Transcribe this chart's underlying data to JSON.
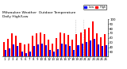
{
  "title": "Milwaukee Weather  Outdoor Temperature",
  "subtitle": "Daily High/Low",
  "days": [
    "1",
    "2",
    "3",
    "4",
    "5",
    "6",
    "7",
    "8",
    "9",
    "10",
    "11",
    "12",
    "13",
    "14",
    "15",
    "16",
    "17",
    "18",
    "19",
    "20",
    "21",
    "22",
    "23",
    "24",
    "25",
    "26"
  ],
  "highs": [
    52,
    58,
    70,
    65,
    50,
    46,
    48,
    65,
    70,
    72,
    68,
    56,
    48,
    60,
    72,
    70,
    66,
    56,
    68,
    72,
    78,
    82,
    95,
    70,
    62,
    68
  ],
  "lows": [
    34,
    38,
    46,
    42,
    30,
    28,
    30,
    42,
    46,
    48,
    44,
    34,
    30,
    36,
    48,
    46,
    42,
    34,
    44,
    48,
    52,
    55,
    58,
    46,
    42,
    44
  ],
  "high_color": "#ff0000",
  "low_color": "#0000ff",
  "bg_color": "#ffffff",
  "ylim": [
    20,
    100
  ],
  "yticks": [
    30,
    40,
    50,
    60,
    70,
    80,
    90,
    100
  ],
  "dotted_lines": [
    17.5,
    19.5
  ],
  "legend_high": "High",
  "legend_low": "Low"
}
